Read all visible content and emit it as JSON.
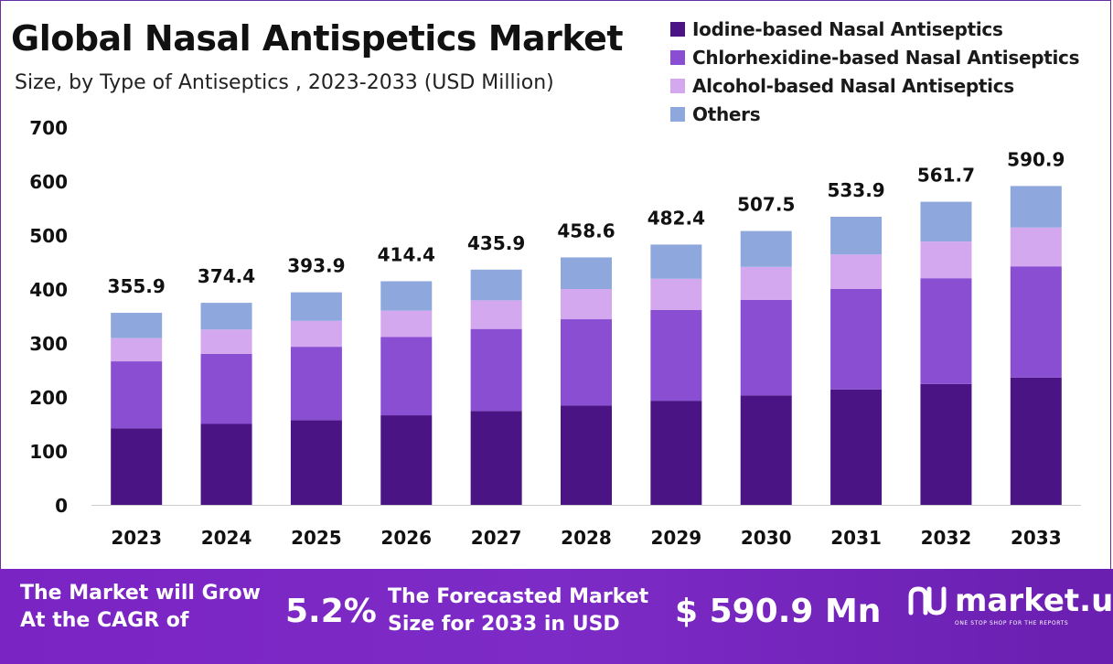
{
  "header": {
    "title": "Global Nasal Antispetics Market",
    "subtitle": "Size, by Type of Antiseptics , 2023-2033 (USD Million)"
  },
  "colors": {
    "iodine": "#4b1485",
    "chlorhexidine": "#8a4ed3",
    "alcohol": "#d4a8ef",
    "others": "#8ea8de",
    "footer_bg": "#7a24c4",
    "axis_text": "#111111"
  },
  "chart_data": {
    "type": "bar",
    "stacked": true,
    "categories": [
      "2023",
      "2024",
      "2025",
      "2026",
      "2027",
      "2028",
      "2029",
      "2030",
      "2031",
      "2032",
      "2033"
    ],
    "series": [
      {
        "name": "Iodine-based Nasal Antiseptics",
        "color": "#4b1485",
        "values": [
          142,
          150,
          157,
          166,
          174,
          184,
          193,
          203,
          214,
          224,
          236
        ]
      },
      {
        "name": "Chlorhexidine-based Nasal Antiseptics",
        "color": "#8a4ed3",
        "values": [
          124,
          130,
          136,
          145,
          152,
          160,
          168,
          177,
          186,
          196,
          206
        ]
      },
      {
        "name": "Alcohol-based Nasal Antiseptics",
        "color": "#d4a8ef",
        "values": [
          43,
          45,
          48,
          49,
          53,
          56,
          58,
          61,
          64,
          68,
          72
        ]
      },
      {
        "name": "Others",
        "color": "#8ea8de",
        "values": [
          46.9,
          49.4,
          52.9,
          54.4,
          56.9,
          58.6,
          63.4,
          66.5,
          69.9,
          73.7,
          76.9
        ]
      }
    ],
    "totals": [
      "355.9",
      "374.4",
      "393.9",
      "414.4",
      "435.9",
      "458.6",
      "482.4",
      "507.5",
      "533.9",
      "561.7",
      "590.9"
    ],
    "ylim": [
      0,
      700
    ],
    "yticks": [
      "0",
      "100",
      "200",
      "300",
      "400",
      "500",
      "600",
      "700"
    ],
    "xlabel": "",
    "ylabel": "",
    "grid": false,
    "legend_position": "top-right"
  },
  "footer": {
    "cagr_label_line1": "The Market will Grow",
    "cagr_label_line2": "At the CAGR of",
    "cagr_value": "5.2%",
    "forecast_label_line1": "The Forecasted Market",
    "forecast_label_line2": "Size for 2033 in USD",
    "forecast_value": "$ 590.9 Mn",
    "brand_name": "market.us",
    "brand_tagline": "ONE STOP SHOP FOR THE REPORTS",
    "brand_icon": "market-us-logo-icon"
  }
}
